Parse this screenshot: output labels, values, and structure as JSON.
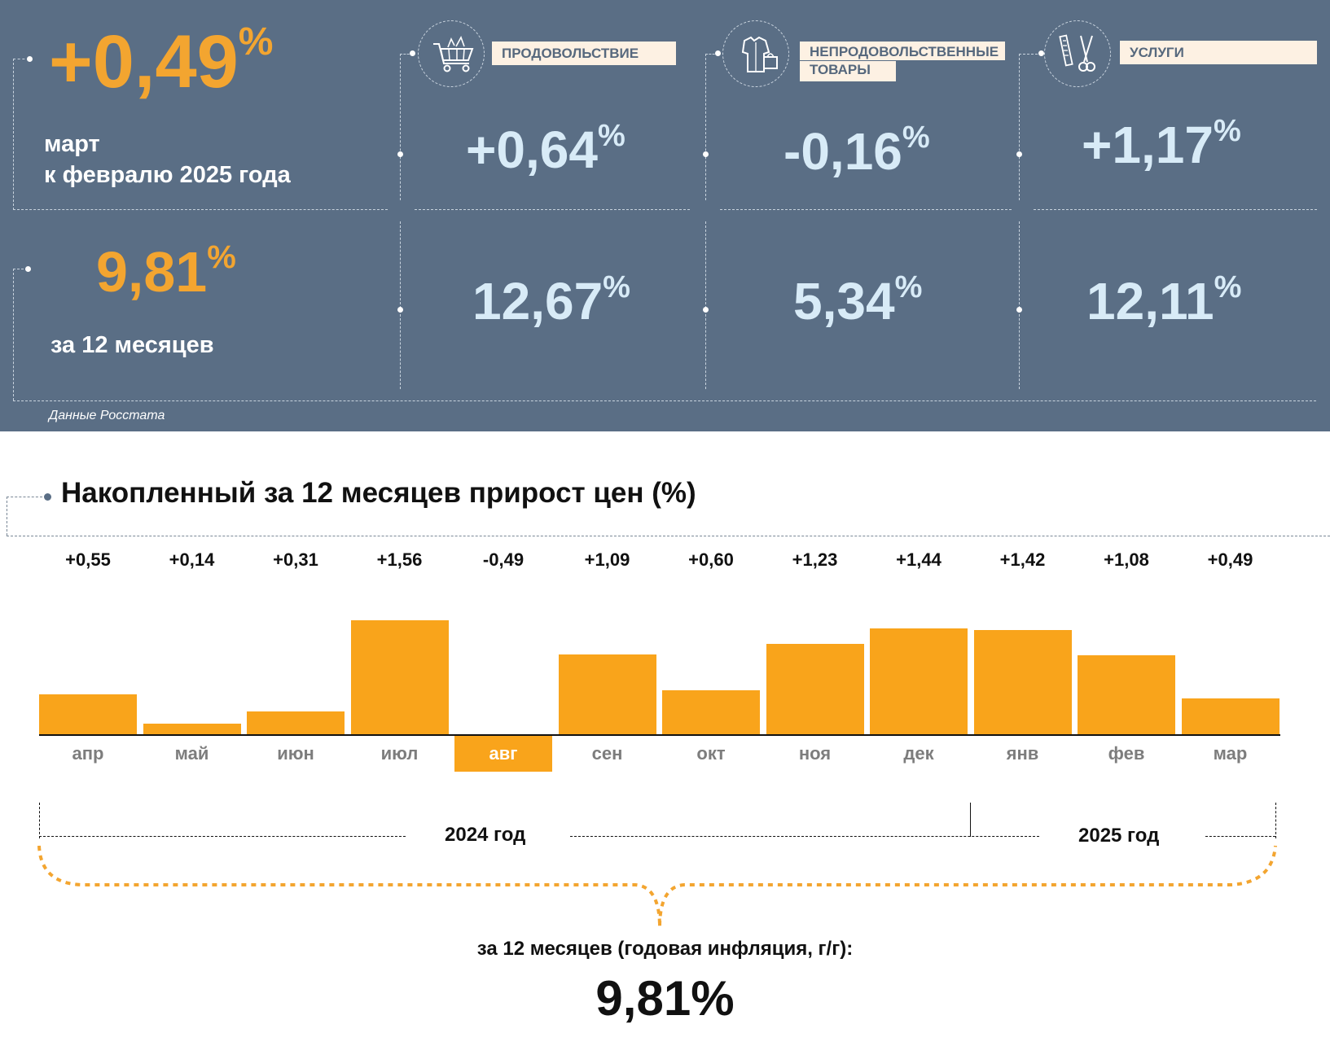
{
  "header": {
    "month_change": {
      "value": "+0,49",
      "pct": "%",
      "caption_line1": "март",
      "caption_line2": "к февралю 2025 года"
    },
    "year_change": {
      "value": "9,81",
      "pct": "%",
      "caption": "за 12 месяцев"
    },
    "source": "Данные Росстата"
  },
  "categories": [
    {
      "icon": "shopping-cart-icon",
      "label_line1": "ПРОДОВОЛЬСТВИЕ",
      "label_line2": "",
      "month": "+0,64",
      "year": "12,67",
      "pct": "%"
    },
    {
      "icon": "clothing-bag-icon",
      "label_line1": "НЕПРОДОВОЛЬСТВЕННЫЕ",
      "label_line2": "ТОВАРЫ",
      "month": "-0,16",
      "year": "5,34",
      "pct": "%"
    },
    {
      "icon": "scissors-comb-icon",
      "label_line1": "УСЛУГИ",
      "label_line2": "",
      "month": "+1,17",
      "year": "12,11",
      "pct": "%"
    }
  ],
  "chart_data": {
    "type": "bar",
    "title": "Накопленный за 12 месяцев прирост цен (%)",
    "categories": [
      "апр",
      "май",
      "июн",
      "июл",
      "авг",
      "сен",
      "окт",
      "ноя",
      "дек",
      "янв",
      "фев",
      "мар"
    ],
    "values": [
      0.55,
      0.14,
      0.31,
      1.56,
      -0.49,
      1.09,
      0.6,
      1.23,
      1.44,
      1.42,
      1.08,
      0.49
    ],
    "value_labels": [
      "+0,55",
      "+0,14",
      "+0,31",
      "+1,56",
      "-0,49",
      "+1,09",
      "+0,60",
      "+1,23",
      "+1,44",
      "+1,42",
      "+1,08",
      "+0,49"
    ],
    "highlighted_category": "авг",
    "year_groups": [
      "2024 год",
      "2025 год"
    ],
    "summary_caption": "за 12 месяцев (годовая инфляция, г/г):",
    "summary_value": "9,81%",
    "bar_color": "#f9a41b",
    "grid": false
  },
  "colors": {
    "panel_bg": "#5a6e85",
    "accent_orange": "#f3a530",
    "value_blue": "#d8ebf7",
    "label_bg": "#fdf1e3"
  }
}
